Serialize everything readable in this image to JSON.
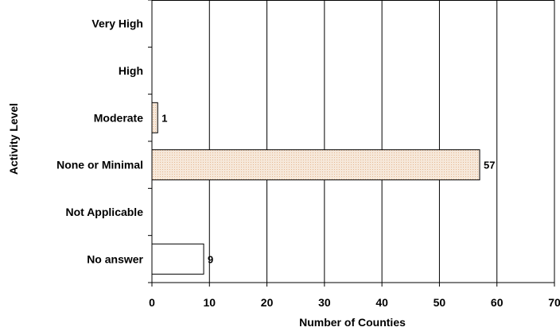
{
  "chart_data": {
    "type": "bar",
    "orientation": "horizontal",
    "title": "",
    "xlabel": "Number of Counties",
    "ylabel": "Activity Level",
    "categories": [
      "Very High",
      "High",
      "Moderate",
      "None or Minimal",
      "Not Applicable",
      "No answer"
    ],
    "values": [
      null,
      null,
      1,
      57,
      null,
      9
    ],
    "data_labels": [
      "",
      "",
      "1",
      "57",
      "",
      "9"
    ],
    "xlim": [
      0,
      70
    ],
    "x_ticks": [
      "0",
      "10",
      "20",
      "30",
      "40",
      "50",
      "60",
      "70"
    ],
    "grid": "vertical",
    "colors": {
      "bar_fill": "#ffffff",
      "bar_fill_highlight": "#f6e7d8",
      "bar_stroke": "#000000",
      "grid": "#000000"
    }
  }
}
